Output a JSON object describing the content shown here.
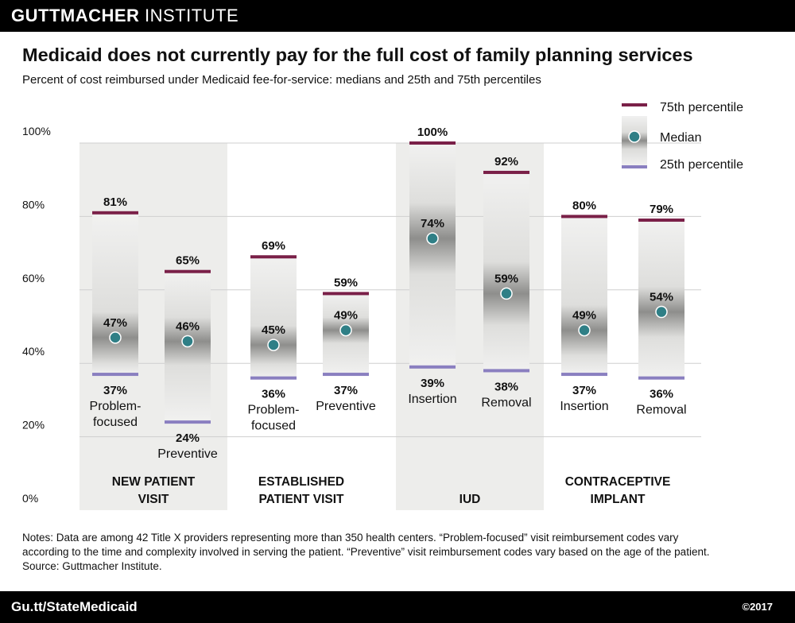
{
  "header": {
    "brand_bold": "GUTTMACHER",
    "brand_rest": " INSTITUTE"
  },
  "title": "Medicaid does not currently pay for the full cost of family planning services",
  "subtitle": "Percent of cost reimbursed under Medicaid fee-for-service: medians and 25th and 75th percentiles",
  "legend": {
    "p75": "75th percentile",
    "median": "Median",
    "p25": "25th percentile"
  },
  "colors": {
    "p75": "#7a2048",
    "p25": "#8a7fc0",
    "median": "#2f7f86",
    "band": "#ededeb",
    "grid": "#cfcfcf"
  },
  "chart_data": {
    "type": "box",
    "ylim": [
      0,
      100
    ],
    "y_ticks": [
      "0%",
      "20%",
      "40%",
      "60%",
      "80%",
      "100%"
    ],
    "groups": [
      {
        "label_lines": [
          "NEW PATIENT",
          "VISIT"
        ],
        "shaded": true
      },
      {
        "label_lines": [
          "ESTABLISHED",
          "PATIENT VISIT"
        ],
        "shaded": false
      },
      {
        "label_lines": [
          "IUD"
        ],
        "shaded": true
      },
      {
        "label_lines": [
          "CONTRACEPTIVE",
          "IMPLANT"
        ],
        "shaded": false
      }
    ],
    "series": [
      {
        "group": 0,
        "name_lines": [
          "Problem-",
          "focused"
        ],
        "p25": 37,
        "median": 47,
        "p75": 81,
        "p25_label": "37%",
        "median_label": "47%",
        "p75_label": "81%"
      },
      {
        "group": 0,
        "name_lines": [
          "Preventive"
        ],
        "p25": 24,
        "median": 46,
        "p75": 65,
        "p25_label": "24%",
        "median_label": "46%",
        "p75_label": "65%"
      },
      {
        "group": 1,
        "name_lines": [
          "Problem-",
          "focused"
        ],
        "p25": 36,
        "median": 45,
        "p75": 69,
        "p25_label": "36%",
        "median_label": "45%",
        "p75_label": "69%"
      },
      {
        "group": 1,
        "name_lines": [
          "Preventive"
        ],
        "p25": 37,
        "median": 49,
        "p75": 59,
        "p25_label": "37%",
        "median_label": "49%",
        "p75_label": "59%"
      },
      {
        "group": 2,
        "name_lines": [
          "Insertion"
        ],
        "p25": 39,
        "median": 74,
        "p75": 100,
        "p25_label": "39%",
        "median_label": "74%",
        "p75_label": "100%"
      },
      {
        "group": 2,
        "name_lines": [
          "Removal"
        ],
        "p25": 38,
        "median": 59,
        "p75": 92,
        "p25_label": "38%",
        "median_label": "59%",
        "p75_label": "92%"
      },
      {
        "group": 3,
        "name_lines": [
          "Insertion"
        ],
        "p25": 37,
        "median": 49,
        "p75": 80,
        "p25_label": "37%",
        "median_label": "49%",
        "p75_label": "80%"
      },
      {
        "group": 3,
        "name_lines": [
          "Removal"
        ],
        "p25": 36,
        "median": 54,
        "p75": 79,
        "p25_label": "36%",
        "median_label": "54%",
        "p75_label": "79%"
      }
    ]
  },
  "notes": [
    "Notes: Data are among 42 Title X providers representing more than 350 health centers. “Problem-focused” visit reimbursement codes vary",
    "according to the time and complexity involved in serving the patient. “Preventive” visit reimbursement codes vary based on the age of the patient.",
    "Source: Guttmacher Institute."
  ],
  "footer": {
    "link": "Gu.tt/StateMedicaid",
    "copyright": "©2017"
  }
}
